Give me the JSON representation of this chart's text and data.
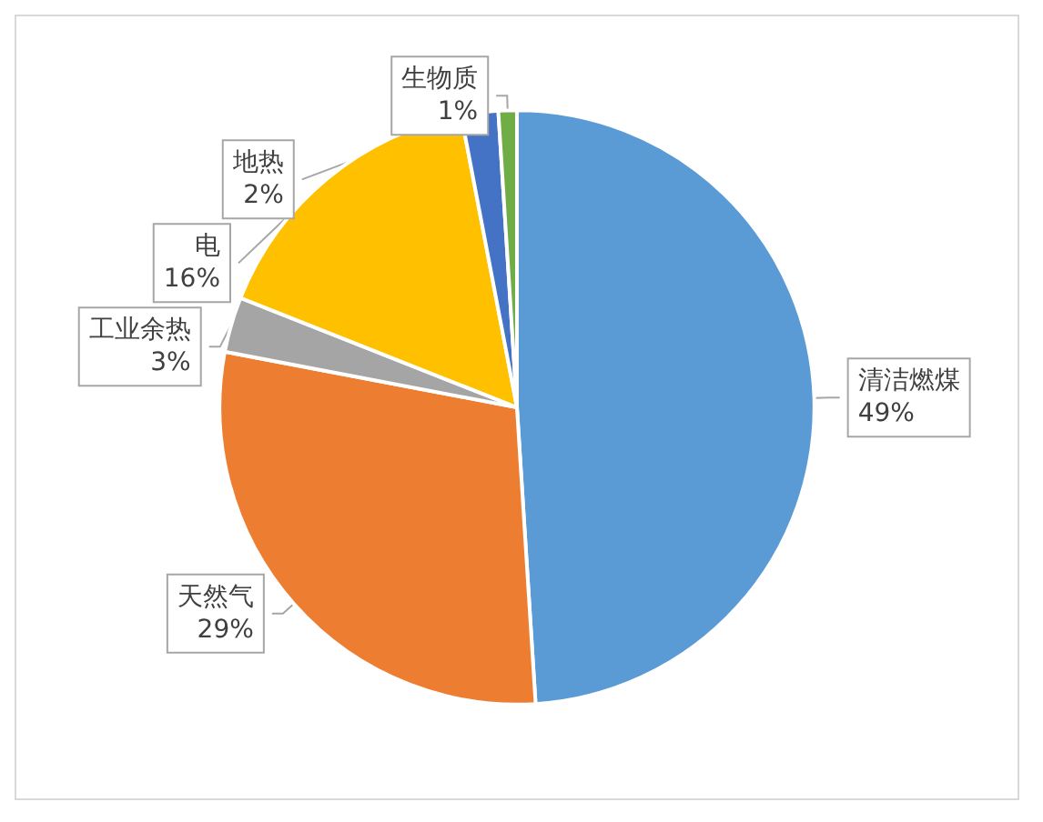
{
  "chart_data": {
    "type": "pie",
    "categories": [
      "清洁燃煤",
      "天然气",
      "工业余热",
      "电",
      "地热",
      "生物质"
    ],
    "values": [
      49,
      29,
      3,
      16,
      2,
      1
    ],
    "value_labels": [
      "49%",
      "29%",
      "3%",
      "16%",
      "2%",
      "1%"
    ],
    "colors": [
      "#5b9bd5",
      "#ed7d31",
      "#a5a5a5",
      "#ffc000",
      "#4472c4",
      "#70ad47"
    ],
    "legend": false
  }
}
